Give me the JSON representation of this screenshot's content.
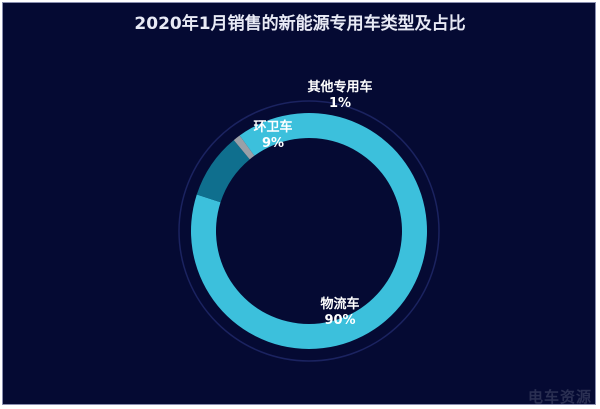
{
  "chart_data": {
    "type": "pie",
    "title": "2020年1月销售的新能源专用车类型及占比",
    "slices": [
      {
        "label": "物流车",
        "percent_label": "90%",
        "value": 90,
        "color": "#3cc0dc"
      },
      {
        "label": "环卫车",
        "percent_label": "9%",
        "value": 9,
        "color": "#0f6f8e"
      },
      {
        "label": "其他专用车",
        "percent_label": "1%",
        "value": 1,
        "color": "#9aa0a8"
      }
    ],
    "donut": true
  },
  "watermark": "电车资源"
}
